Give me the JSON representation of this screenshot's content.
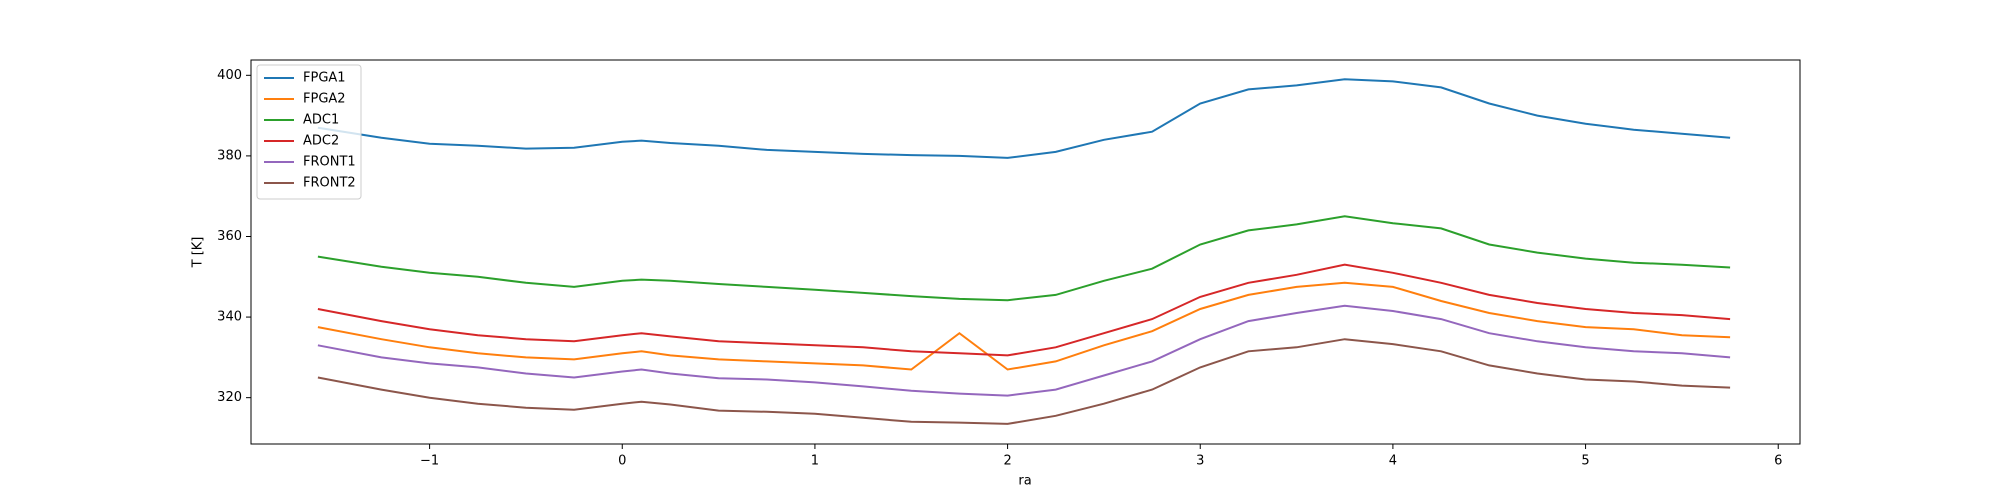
{
  "chart_data": {
    "type": "line",
    "xlabel": "ra",
    "ylabel": "T [K]",
    "x": [
      -1.58,
      -1.25,
      -1,
      -0.75,
      -0.5,
      -0.25,
      0,
      0.1,
      0.25,
      0.5,
      0.75,
      1,
      1.25,
      1.5,
      1.75,
      2,
      2.25,
      2.5,
      2.75,
      3,
      3.25,
      3.5,
      3.75,
      4,
      4.25,
      4.5,
      4.75,
      5,
      5.25,
      5.5,
      5.75
    ],
    "series": [
      {
        "name": "FPGA1",
        "color": "#1f77b4",
        "values": [
          387,
          384.5,
          383,
          382.5,
          381.8,
          382,
          383.5,
          383.8,
          383.2,
          382.5,
          381.5,
          381,
          380.5,
          380.2,
          380,
          379.5,
          381,
          384,
          386,
          393,
          396.5,
          397.5,
          399,
          398.5,
          397,
          393,
          390,
          388,
          386.5,
          385.5,
          384.5
        ]
      },
      {
        "name": "FPGA2",
        "color": "#ff7f0e",
        "values": [
          337.5,
          334.5,
          332.5,
          331,
          330,
          329.5,
          331,
          331.5,
          330.5,
          329.5,
          329,
          328.5,
          328,
          327,
          336,
          327,
          329,
          333,
          336.5,
          342,
          345.5,
          347.5,
          348.5,
          347.5,
          344,
          341,
          339,
          337.5,
          337,
          335.5,
          335
        ]
      },
      {
        "name": "ADC1",
        "color": "#2ca02c",
        "values": [
          355,
          352.5,
          351,
          350,
          348.5,
          347.5,
          349,
          349.3,
          349,
          348.2,
          347.5,
          346.8,
          346,
          345.2,
          344.5,
          344.2,
          345.5,
          349,
          352,
          358,
          361.5,
          363,
          365,
          363.3,
          362,
          358,
          356,
          354.5,
          353.5,
          353,
          352.3
        ]
      },
      {
        "name": "ADC2",
        "color": "#d62728",
        "values": [
          342,
          339,
          337,
          335.5,
          334.5,
          334,
          335.5,
          336,
          335.2,
          334,
          333.5,
          333,
          332.5,
          331.5,
          331,
          330.5,
          332.5,
          336,
          339.5,
          345,
          348.5,
          350.5,
          353,
          351,
          348.5,
          345.5,
          343.5,
          342,
          341,
          340.5,
          339.5
        ]
      },
      {
        "name": "FRONT1",
        "color": "#9467bd",
        "values": [
          333,
          330,
          328.5,
          327.5,
          326,
          325,
          326.5,
          327,
          326,
          324.8,
          324.5,
          323.8,
          322.8,
          321.7,
          321,
          320.5,
          322,
          325.5,
          329,
          334.5,
          339,
          341,
          342.8,
          341.5,
          339.5,
          336,
          334,
          332.5,
          331.5,
          331,
          330
        ]
      },
      {
        "name": "FRONT2",
        "color": "#8c564b",
        "values": [
          325,
          322,
          320,
          318.5,
          317.5,
          317,
          318.5,
          319,
          318.3,
          316.8,
          316.5,
          316,
          315,
          314,
          313.8,
          313.5,
          315.5,
          318.5,
          322,
          327.5,
          331.5,
          332.5,
          334.5,
          333.3,
          331.5,
          328,
          326,
          324.5,
          324,
          323,
          322.5
        ]
      }
    ],
    "xlim": [
      -1.927,
      6.113
    ],
    "ylim": [
      308.5,
      403.8
    ],
    "xticks": [
      {
        "value": -1,
        "label": "−1"
      },
      0,
      1,
      2,
      3,
      4,
      5,
      6
    ],
    "yticks": [
      320,
      340,
      360,
      380,
      400
    ],
    "legend": "upper left"
  }
}
